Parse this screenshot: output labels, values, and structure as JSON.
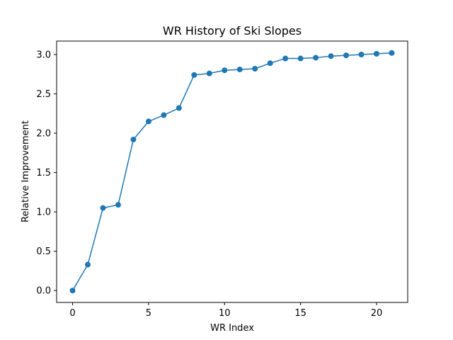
{
  "chart_data": {
    "type": "line",
    "title": "WR History of Ski Slopes",
    "xlabel": "WR Index",
    "ylabel": "Relative Improvement",
    "x": [
      0,
      1,
      2,
      3,
      4,
      5,
      6,
      7,
      8,
      9,
      10,
      11,
      12,
      13,
      14,
      15,
      16,
      17,
      18,
      19,
      20,
      21
    ],
    "series": [
      {
        "values": [
          0.0,
          0.33,
          1.05,
          1.09,
          1.92,
          2.15,
          2.23,
          2.32,
          2.74,
          2.76,
          2.8,
          2.81,
          2.82,
          2.89,
          2.95,
          2.95,
          2.96,
          2.98,
          2.99,
          3.0,
          3.01,
          3.02
        ],
        "color": "#1f77b4",
        "marker": "circle"
      }
    ],
    "xlim": [
      -1.05,
      22.05
    ],
    "ylim": [
      -0.151,
      3.171
    ],
    "xticks": [
      "0",
      "5",
      "10",
      "15",
      "20"
    ],
    "yticks": [
      "0.0",
      "0.5",
      "1.0",
      "1.5",
      "2.0",
      "2.5",
      "3.0"
    ],
    "grid": false,
    "legend": "none"
  }
}
